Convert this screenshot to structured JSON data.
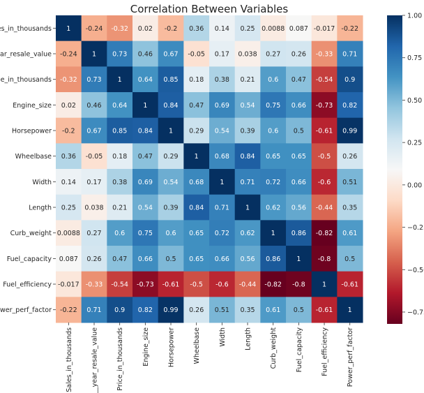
{
  "chart_data": {
    "type": "heatmap",
    "title": "Correlation Between Variables",
    "colormap": "RdBu",
    "colormap_stops": [
      "#67001f",
      "#b2182b",
      "#d6604d",
      "#f4a582",
      "#fddbc7",
      "#f7f7f7",
      "#d1e5f0",
      "#92c5de",
      "#4393c3",
      "#2166ac",
      "#053061"
    ],
    "vmin": -0.82,
    "vmax": 1.0,
    "annotated": true,
    "row_labels": [
      "Sales_in_thousands",
      "__year_resale_value",
      "Price_in_thousands",
      "Engine_size",
      "Horsepower",
      "Wheelbase",
      "Width",
      "Length",
      "Curb_weight",
      "Fuel_capacity",
      "Fuel_efficiency",
      "Power_perf_factor"
    ],
    "col_labels": [
      "Sales_in_thousands",
      "__year_resale_value",
      "Price_in_thousands",
      "Engine_size",
      "Horsepower",
      "Wheelbase",
      "Width",
      "Length",
      "Curb_weight",
      "Fuel_capacity",
      "Fuel_efficiency",
      "Power_perf_factor"
    ],
    "values": [
      [
        1,
        -0.24,
        -0.32,
        0.02,
        -0.2,
        0.36,
        0.14,
        0.25,
        0.0088,
        0.087,
        -0.017,
        -0.22
      ],
      [
        -0.24,
        1,
        0.73,
        0.46,
        0.67,
        -0.05,
        0.17,
        0.038,
        0.27,
        0.26,
        -0.33,
        0.71
      ],
      [
        -0.32,
        0.73,
        1,
        0.64,
        0.85,
        0.18,
        0.38,
        0.21,
        0.6,
        0.47,
        -0.54,
        0.9
      ],
      [
        0.02,
        0.46,
        0.64,
        1,
        0.84,
        0.47,
        0.69,
        0.54,
        0.75,
        0.66,
        -0.73,
        0.82
      ],
      [
        -0.2,
        0.67,
        0.85,
        0.84,
        1,
        0.29,
        0.54,
        0.39,
        0.6,
        0.5,
        -0.61,
        0.99
      ],
      [
        0.36,
        -0.05,
        0.18,
        0.47,
        0.29,
        1,
        0.68,
        0.84,
        0.65,
        0.65,
        -0.5,
        0.26
      ],
      [
        0.14,
        0.17,
        0.38,
        0.69,
        0.54,
        0.68,
        1,
        0.71,
        0.72,
        0.66,
        -0.6,
        0.51
      ],
      [
        0.25,
        0.038,
        0.21,
        0.54,
        0.39,
        0.84,
        0.71,
        1,
        0.62,
        0.56,
        -0.44,
        0.35
      ],
      [
        0.0088,
        0.27,
        0.6,
        0.75,
        0.6,
        0.65,
        0.72,
        0.62,
        1,
        0.86,
        -0.82,
        0.61
      ],
      [
        0.087,
        0.26,
        0.47,
        0.66,
        0.5,
        0.65,
        0.66,
        0.56,
        0.86,
        1,
        -0.8,
        0.5
      ],
      [
        -0.017,
        -0.33,
        -0.54,
        -0.73,
        -0.61,
        -0.5,
        -0.6,
        -0.44,
        -0.82,
        -0.8,
        1,
        -0.61
      ],
      [
        -0.22,
        0.71,
        0.9,
        0.82,
        0.99,
        0.26,
        0.51,
        0.35,
        0.61,
        0.5,
        -0.61,
        1
      ]
    ],
    "colorbar": {
      "ticks": [
        1.0,
        0.75,
        0.5,
        0.25,
        0.0,
        -0.25,
        -0.5,
        -0.75
      ],
      "tick_labels": [
        "1.00",
        "0.75",
        "0.50",
        "0.25",
        "0.00",
        "−0.25",
        "−0.50",
        "−0.75"
      ]
    }
  }
}
